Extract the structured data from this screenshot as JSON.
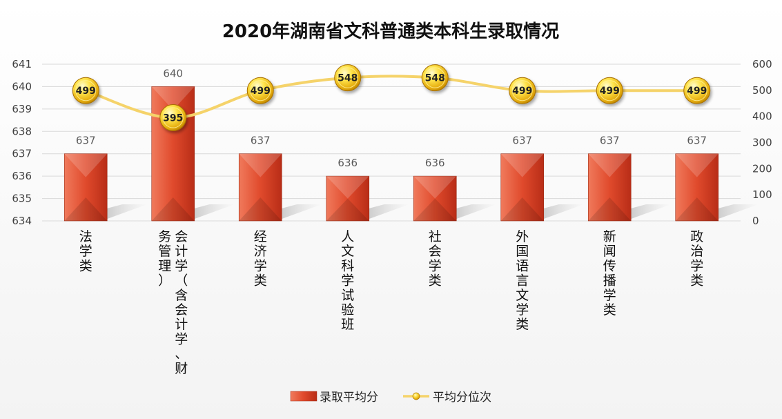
{
  "chart_data": {
    "type": "bar+line",
    "title": "2020年湖南省文科普通类本科生录取情况",
    "categories": [
      "法学类",
      "会计学（含会计学、财务管理）",
      "经济学类",
      "人文科学试验班",
      "社会学类",
      "外国语言文学类",
      "新闻传播学类",
      "政治学类"
    ],
    "category_label_columns": [
      [
        "法学类"
      ],
      [
        "会计学（含会计学、财",
        "务管理）"
      ],
      [
        "经济学类"
      ],
      [
        "人文科学试验班"
      ],
      [
        "社会学类"
      ],
      [
        "外国语言文学类"
      ],
      [
        "新闻传播学类"
      ],
      [
        "政治学类"
      ]
    ],
    "series": [
      {
        "name": "录取平均分",
        "type": "bar",
        "axis": "left",
        "color": "#d9432b",
        "values": [
          637,
          640,
          637,
          636,
          636,
          637,
          637,
          637
        ],
        "labels": [
          "637",
          "640",
          "637",
          "636",
          "636",
          "637",
          "637",
          "637"
        ]
      },
      {
        "name": "平均分位次",
        "type": "line",
        "axis": "right",
        "color": "#f5d36a",
        "values": [
          499,
          395,
          499,
          548,
          548,
          499,
          499,
          499
        ],
        "labels": [
          "499",
          "395",
          "499",
          "548",
          "548",
          "499",
          "499",
          "499"
        ]
      }
    ],
    "y_left": {
      "min": 634,
      "max": 641,
      "ticks": [
        "634",
        "635",
        "636",
        "637",
        "638",
        "639",
        "640",
        "641"
      ]
    },
    "y_right": {
      "min": 0,
      "max": 600,
      "ticks": [
        "0",
        "100",
        "200",
        "300",
        "400",
        "500",
        "600"
      ]
    },
    "grid": true,
    "legend_position": "bottom"
  }
}
